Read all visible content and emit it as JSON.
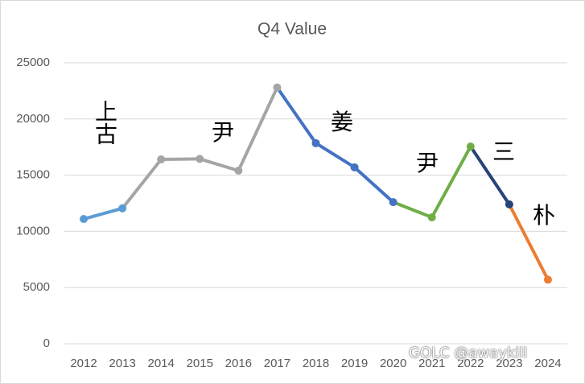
{
  "chart_data": {
    "type": "line",
    "title": "Q4 Value",
    "categories": [
      "2012",
      "2013",
      "2014",
      "2015",
      "2016",
      "2017",
      "2018",
      "2019",
      "2020",
      "2021",
      "2022",
      "2023",
      "2024"
    ],
    "values": [
      11100,
      12050,
      16400,
      16450,
      15400,
      22800,
      17850,
      15700,
      12600,
      11250,
      17550,
      12400,
      5700
    ],
    "segment_colors": [
      "#5b9bd5",
      "#a5a5a5",
      "#a5a5a5",
      "#a5a5a5",
      "#a5a5a5",
      "#4472c4",
      "#4472c4",
      "#4472c4",
      "#70ad47",
      "#70ad47",
      "#264478",
      "#ed7d31"
    ],
    "marker_colors": [
      "#5b9bd5",
      "#5b9bd5",
      "#a5a5a5",
      "#a5a5a5",
      "#a5a5a5",
      "#a5a5a5",
      "#4472c4",
      "#4472c4",
      "#4472c4",
      "#70ad47",
      "#70ad47",
      "#264478",
      "#ed7d31"
    ],
    "ylim": [
      0,
      25000
    ],
    "yticks": [
      0,
      5000,
      10000,
      15000,
      20000,
      25000
    ],
    "grid": true,
    "annotations": [
      "上古",
      "尹",
      "姜",
      "尹",
      "三",
      "朴"
    ],
    "watermark": "GOLC @awaykill"
  }
}
